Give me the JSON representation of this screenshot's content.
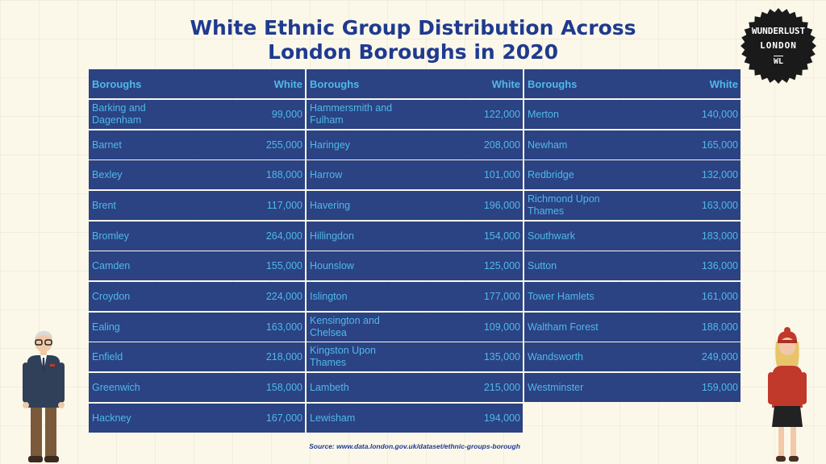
{
  "title": [
    "White Ethnic Group Distribution Across",
    "London Boroughs in 2020"
  ],
  "logo": {
    "line1": "WUNDERLUST",
    "line2": "LONDON",
    "line3": "WL"
  },
  "source": "Source: www.data.london.gov.uk/dataset/ethnic-groups-borough",
  "colors": {
    "title": "#1f3a8f",
    "cell_bg": "#2b4283",
    "cell_text": "#4fb9ea",
    "background": "#fbf8ea"
  },
  "chart_data": {
    "type": "table",
    "title": "White Ethnic Group Distribution Across London Boroughs in 2020",
    "headers": [
      "Boroughs",
      "White"
    ],
    "columns": [
      {
        "header": [
          "Boroughs",
          "White"
        ],
        "rows": [
          [
            "Barking and Dagenham",
            "99,000"
          ],
          [
            "Barnet",
            "255,000"
          ],
          [
            "Bexley",
            "188,000"
          ],
          [
            "Brent",
            "117,000"
          ],
          [
            "Bromley",
            "264,000"
          ],
          [
            "Camden",
            "155,000"
          ],
          [
            "Croydon",
            "224,000"
          ],
          [
            "Ealing",
            "163,000"
          ],
          [
            "Enfield",
            "218,000"
          ],
          [
            "Greenwich",
            "158,000"
          ],
          [
            "Hackney",
            "167,000"
          ]
        ]
      },
      {
        "header": [
          "Boroughs",
          "White"
        ],
        "rows": [
          [
            "Hammersmith and Fulham",
            "122,000"
          ],
          [
            "Haringey",
            "208,000"
          ],
          [
            "Harrow",
            "101,000"
          ],
          [
            "Havering",
            "196,000"
          ],
          [
            "Hillingdon",
            "154,000"
          ],
          [
            "Hounslow",
            "125,000"
          ],
          [
            "Islington",
            "177,000"
          ],
          [
            "Kensington and Chelsea",
            "109,000"
          ],
          [
            "Kingston Upon Thames",
            "135,000"
          ],
          [
            "Lambeth",
            "215,000"
          ],
          [
            "Lewisham",
            "194,000"
          ]
        ]
      },
      {
        "header": [
          "Boroughs",
          "White"
        ],
        "rows": [
          [
            "Merton",
            "140,000"
          ],
          [
            "Newham",
            "165,000"
          ],
          [
            "Redbridge",
            "132,000"
          ],
          [
            "Richmond Upon Thames",
            "163,000"
          ],
          [
            "Southwark",
            "183,000"
          ],
          [
            "Sutton",
            "136,000"
          ],
          [
            "Tower Hamlets",
            "161,000"
          ],
          [
            "Waltham Forest",
            "188,000"
          ],
          [
            "Wandsworth",
            "249,000"
          ],
          [
            "Westminster",
            "159,000"
          ]
        ]
      }
    ]
  }
}
